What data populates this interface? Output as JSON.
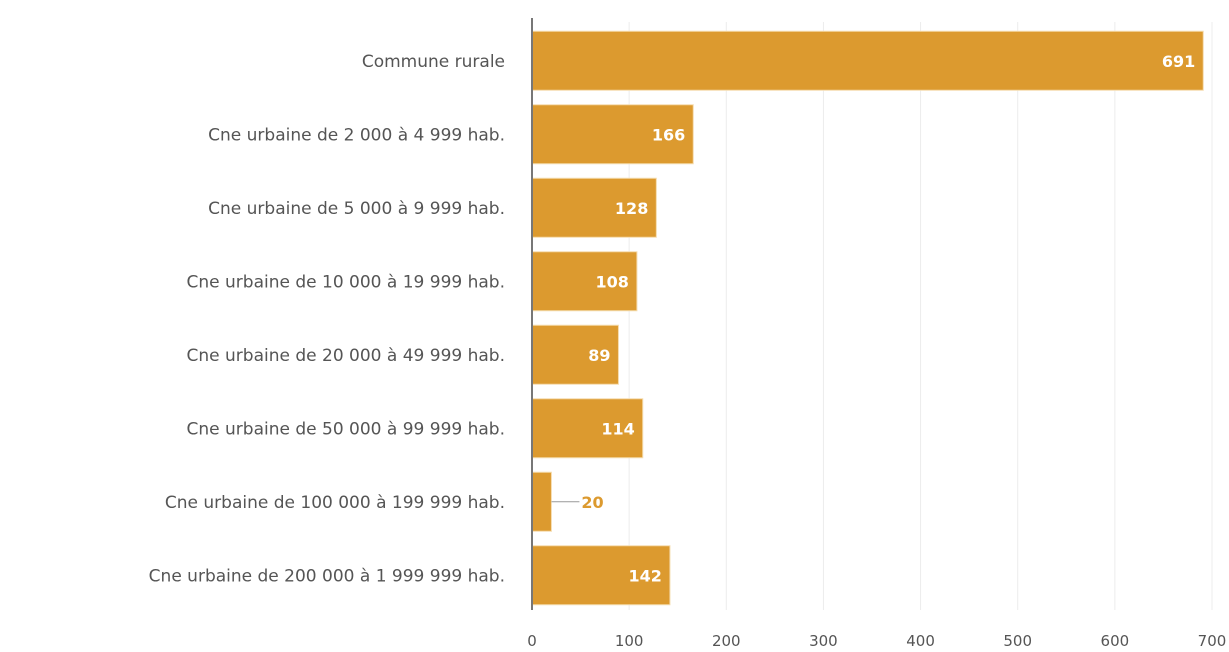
{
  "chart_data": {
    "type": "bar",
    "orientation": "horizontal",
    "title": "",
    "xlabel": "",
    "ylabel": "",
    "categories": [
      "Commune rurale",
      "Cne urbaine de 2 000 à 4 999 hab.",
      "Cne urbaine de 5 000 à 9 999 hab.",
      "Cne urbaine de 10 000 à 19 999 hab.",
      "Cne urbaine de 20 000 à 49 999 hab.",
      "Cne urbaine de 50 000 à 99 999 hab.",
      "Cne urbaine de 100 000 à 199 999 hab.",
      "Cne urbaine de 200 000 à 1 999 999 hab."
    ],
    "values": [
      691,
      166,
      128,
      108,
      89,
      114,
      20,
      142
    ],
    "value_labels": [
      "691",
      "166",
      "128",
      "108",
      "89",
      "114",
      "20",
      "142"
    ],
    "xlim": [
      0,
      700
    ],
    "x_ticks": [
      0,
      100,
      200,
      300,
      400,
      500,
      600,
      700
    ],
    "x_tick_labels": [
      "0",
      "100",
      "200",
      "300",
      "400",
      "500",
      "600",
      "700"
    ],
    "grid": "vertical",
    "bar_color": "#dc9a2f",
    "label_color_outside": "#dc9a2f",
    "gridline_color": "#ececec",
    "axis_color": "#777777"
  }
}
